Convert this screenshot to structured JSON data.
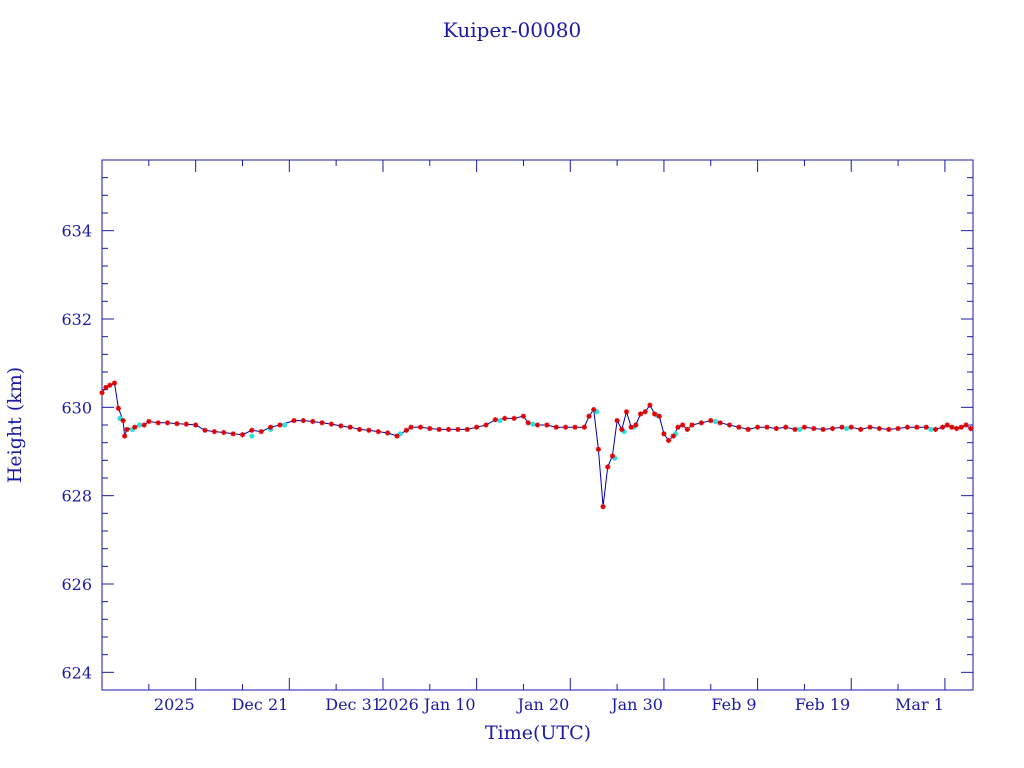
{
  "chart_data": {
    "type": "scatter",
    "title": "Kuiper-00080",
    "xlabel": "Time(UTC)",
    "ylabel": "Height (km)",
    "x_range": [
      "2025-12-01",
      "2026-03-04"
    ],
    "ylim": [
      623.6,
      635.6
    ],
    "x_ticks": [
      {
        "date": "2025-12-11",
        "label": "2025"
      },
      {
        "date": "2025-12-21",
        "label": "Dec 21"
      },
      {
        "date": "2025-12-31",
        "label": "Dec 31"
      },
      {
        "date": "2026-01-10",
        "label": "2026 Jan 10"
      },
      {
        "date": "2026-01-20",
        "label": "Jan 20"
      },
      {
        "date": "2026-01-30",
        "label": "Jan 30"
      },
      {
        "date": "2026-02-09",
        "label": "Feb  9"
      },
      {
        "date": "2026-02-19",
        "label": "Feb 19"
      },
      {
        "date": "2026-03-01",
        "label": "Mar  1"
      }
    ],
    "y_ticks": [
      624,
      626,
      628,
      630,
      632,
      634
    ],
    "grid": false,
    "colors": {
      "axis": "#1a1aa6",
      "line": "#0000aa",
      "marker": "#e00000",
      "fill_marker": "#30e0e0"
    },
    "series": [
      {
        "marker": "star",
        "points": [
          [
            "2025-12-01T00:00",
            630.33
          ],
          [
            "2025-12-01T10:00",
            630.45
          ],
          [
            "2025-12-01T20:00",
            630.5
          ],
          [
            "2025-12-02T08:00",
            630.55
          ],
          [
            "2025-12-02T18:00",
            629.98
          ],
          [
            "2025-12-03T06:00",
            629.7
          ],
          [
            "2025-12-03T10:00",
            629.35
          ],
          [
            "2025-12-03T16:00",
            629.5
          ],
          [
            "2025-12-04T12:00",
            629.55
          ],
          [
            "2025-12-05T12:00",
            629.6
          ],
          [
            "2025-12-06T00:00",
            629.68
          ],
          [
            "2025-12-07T00:00",
            629.65
          ],
          [
            "2025-12-08T00:00",
            629.65
          ],
          [
            "2025-12-09T00:00",
            629.63
          ],
          [
            "2025-12-10T00:00",
            629.62
          ],
          [
            "2025-12-11T00:00",
            629.6
          ],
          [
            "2025-12-12T00:00",
            629.48
          ],
          [
            "2025-12-13T00:00",
            629.45
          ],
          [
            "2025-12-14T00:00",
            629.43
          ],
          [
            "2025-12-15T00:00",
            629.4
          ],
          [
            "2025-12-16T00:00",
            629.38
          ],
          [
            "2025-12-17T00:00",
            629.48
          ],
          [
            "2025-12-18T00:00",
            629.45
          ],
          [
            "2025-12-19T00:00",
            629.55
          ],
          [
            "2025-12-20T00:00",
            629.6
          ],
          [
            "2025-12-21T12:00",
            629.7
          ],
          [
            "2025-12-22T12:00",
            629.7
          ],
          [
            "2025-12-23T12:00",
            629.68
          ],
          [
            "2025-12-24T12:00",
            629.65
          ],
          [
            "2025-12-25T12:00",
            629.62
          ],
          [
            "2025-12-26T12:00",
            629.58
          ],
          [
            "2025-12-27T12:00",
            629.55
          ],
          [
            "2025-12-28T12:00",
            629.5
          ],
          [
            "2025-12-29T12:00",
            629.48
          ],
          [
            "2025-12-30T12:00",
            629.45
          ],
          [
            "2025-12-31T12:00",
            629.42
          ],
          [
            "2026-01-01T12:00",
            629.35
          ],
          [
            "2026-01-02T12:00",
            629.48
          ],
          [
            "2026-01-03T00:00",
            629.55
          ],
          [
            "2026-01-04T00:00",
            629.55
          ],
          [
            "2026-01-05T00:00",
            629.52
          ],
          [
            "2026-01-06T00:00",
            629.5
          ],
          [
            "2026-01-07T00:00",
            629.5
          ],
          [
            "2026-01-08T00:00",
            629.5
          ],
          [
            "2026-01-09T00:00",
            629.5
          ],
          [
            "2026-01-10T00:00",
            629.55
          ],
          [
            "2026-01-11T00:00",
            629.6
          ],
          [
            "2026-01-12T00:00",
            629.72
          ],
          [
            "2026-01-13T00:00",
            629.75
          ],
          [
            "2026-01-14T00:00",
            629.75
          ],
          [
            "2026-01-15T00:00",
            629.8
          ],
          [
            "2026-01-15T12:00",
            629.65
          ],
          [
            "2026-01-16T12:00",
            629.6
          ],
          [
            "2026-01-17T12:00",
            629.6
          ],
          [
            "2026-01-18T12:00",
            629.55
          ],
          [
            "2026-01-19T12:00",
            629.55
          ],
          [
            "2026-01-20T12:00",
            629.55
          ],
          [
            "2026-01-21T12:00",
            629.55
          ],
          [
            "2026-01-22T00:00",
            629.8
          ],
          [
            "2026-01-22T12:00",
            629.95
          ],
          [
            "2026-01-23T00:00",
            629.05
          ],
          [
            "2026-01-23T12:00",
            627.75
          ],
          [
            "2026-01-24T00:00",
            628.65
          ],
          [
            "2026-01-24T12:00",
            628.9
          ],
          [
            "2026-01-25T00:00",
            629.7
          ],
          [
            "2026-01-25T12:00",
            629.5
          ],
          [
            "2026-01-26T00:00",
            629.9
          ],
          [
            "2026-01-26T12:00",
            629.55
          ],
          [
            "2026-01-27T00:00",
            629.6
          ],
          [
            "2026-01-27T12:00",
            629.85
          ],
          [
            "2026-01-28T00:00",
            629.9
          ],
          [
            "2026-01-28T12:00",
            630.05
          ],
          [
            "2026-01-29T00:00",
            629.85
          ],
          [
            "2026-01-29T12:00",
            629.8
          ],
          [
            "2026-01-30T00:00",
            629.4
          ],
          [
            "2026-01-30T12:00",
            629.25
          ],
          [
            "2026-01-31T00:00",
            629.35
          ],
          [
            "2026-01-31T12:00",
            629.55
          ],
          [
            "2026-02-01T00:00",
            629.6
          ],
          [
            "2026-02-01T12:00",
            629.5
          ],
          [
            "2026-02-02T00:00",
            629.6
          ],
          [
            "2026-02-03T00:00",
            629.65
          ],
          [
            "2026-02-04T00:00",
            629.7
          ],
          [
            "2026-02-05T00:00",
            629.65
          ],
          [
            "2026-02-06T00:00",
            629.6
          ],
          [
            "2026-02-07T00:00",
            629.55
          ],
          [
            "2026-02-08T00:00",
            629.5
          ],
          [
            "2026-02-09T00:00",
            629.55
          ],
          [
            "2026-02-10T00:00",
            629.55
          ],
          [
            "2026-02-11T00:00",
            629.52
          ],
          [
            "2026-02-12T00:00",
            629.55
          ],
          [
            "2026-02-13T00:00",
            629.5
          ],
          [
            "2026-02-14T00:00",
            629.55
          ],
          [
            "2026-02-15T00:00",
            629.52
          ],
          [
            "2026-02-16T00:00",
            629.5
          ],
          [
            "2026-02-17T00:00",
            629.52
          ],
          [
            "2026-02-18T00:00",
            629.55
          ],
          [
            "2026-02-19T00:00",
            629.55
          ],
          [
            "2026-02-20T00:00",
            629.5
          ],
          [
            "2026-02-21T00:00",
            629.55
          ],
          [
            "2026-02-22T00:00",
            629.52
          ],
          [
            "2026-02-23T00:00",
            629.5
          ],
          [
            "2026-02-24T00:00",
            629.52
          ],
          [
            "2026-02-25T00:00",
            629.55
          ],
          [
            "2026-02-26T00:00",
            629.55
          ],
          [
            "2026-02-27T00:00",
            629.55
          ],
          [
            "2026-02-28T00:00",
            629.5
          ],
          [
            "2026-02-28T18:00",
            629.55
          ],
          [
            "2026-03-01T06:00",
            629.6
          ],
          [
            "2026-03-01T18:00",
            629.55
          ],
          [
            "2026-03-02T06:00",
            629.52
          ],
          [
            "2026-03-02T18:00",
            629.55
          ],
          [
            "2026-03-03T06:00",
            629.6
          ],
          [
            "2026-03-03T18:00",
            629.52
          ]
        ]
      },
      {
        "marker": "dot",
        "points": [
          [
            "2025-12-02T22:00",
            629.75
          ],
          [
            "2025-12-04T06:00",
            629.5
          ],
          [
            "2025-12-05T00:00",
            629.6
          ],
          [
            "2025-12-17T00:00",
            629.35
          ],
          [
            "2025-12-19T00:00",
            629.5
          ],
          [
            "2025-12-20T12:00",
            629.6
          ],
          [
            "2026-01-01T20:00",
            629.4
          ],
          [
            "2026-01-12T12:00",
            629.7
          ],
          [
            "2026-01-16T00:00",
            629.62
          ],
          [
            "2026-01-22T20:00",
            629.9
          ],
          [
            "2026-01-24T18:00",
            628.85
          ],
          [
            "2026-01-25T18:00",
            629.45
          ],
          [
            "2026-01-26T18:00",
            629.55
          ],
          [
            "2026-01-29T06:00",
            629.82
          ],
          [
            "2026-01-31T06:00",
            629.4
          ],
          [
            "2026-02-04T12:00",
            629.68
          ],
          [
            "2026-02-13T12:00",
            629.5
          ],
          [
            "2026-02-18T12:00",
            629.52
          ],
          [
            "2026-02-27T12:00",
            629.5
          ]
        ]
      }
    ]
  }
}
